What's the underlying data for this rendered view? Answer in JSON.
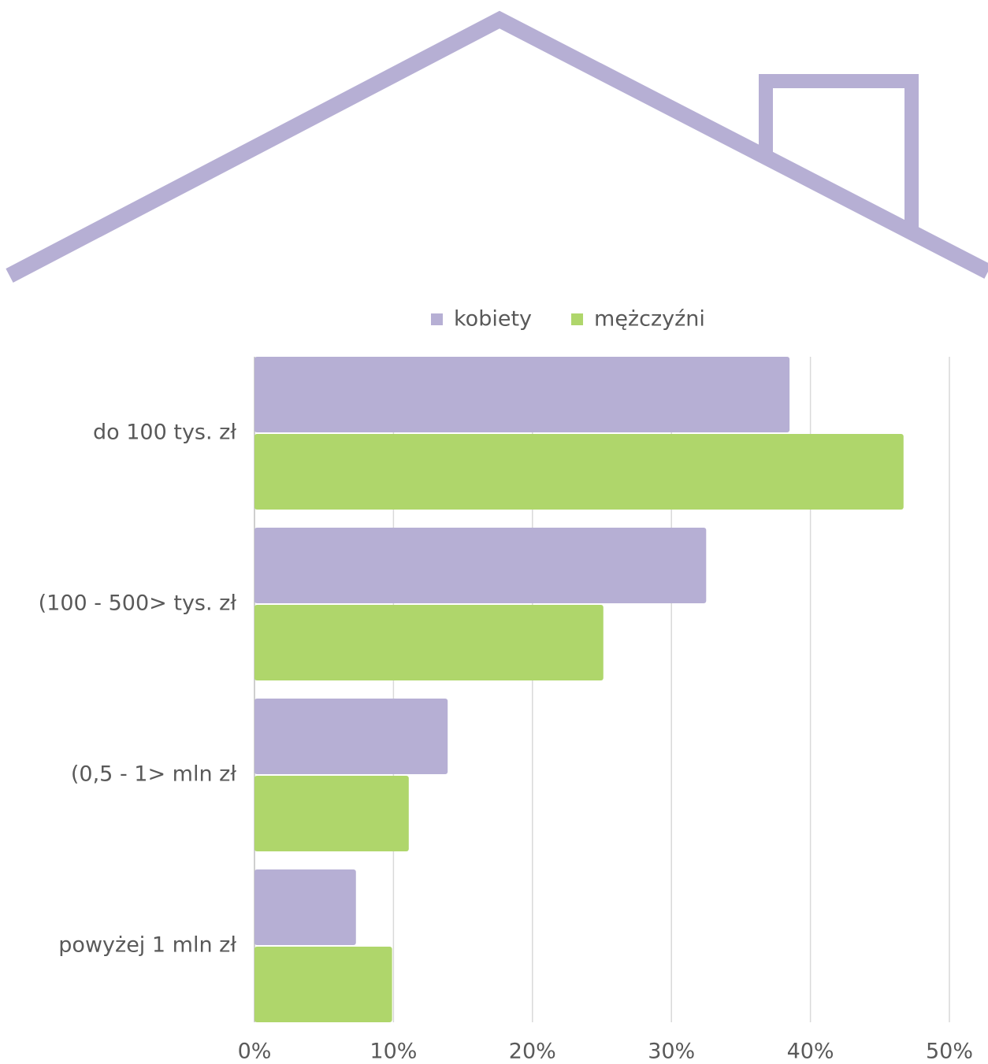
{
  "chart_data": {
    "type": "bar",
    "orientation": "horizontal",
    "categories": [
      "do 100 tys. zł",
      "(100 - 500> tys. zł",
      "(0,5 - 1> mln zł",
      "powyżej 1 mln zł"
    ],
    "series": [
      {
        "name": "kobiety",
        "color": "#b6afd4",
        "values": [
          38.5,
          32.5,
          13.9,
          7.3
        ]
      },
      {
        "name": "mężczyźni",
        "color": "#afd66b",
        "values": [
          46.7,
          25.1,
          11.1,
          9.9
        ]
      }
    ],
    "xlim": [
      0,
      50
    ],
    "xticks": [
      {
        "value": 0,
        "label": "0%"
      },
      {
        "value": 10,
        "label": "10%"
      },
      {
        "value": 20,
        "label": "20%"
      },
      {
        "value": 30,
        "label": "30%"
      },
      {
        "value": 40,
        "label": "40%"
      },
      {
        "value": 50,
        "label": "50%"
      }
    ],
    "grid": true,
    "legend": "top"
  }
}
